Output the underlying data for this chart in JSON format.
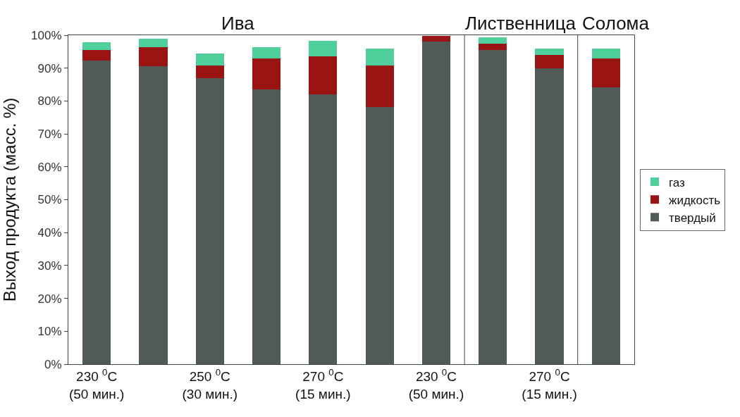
{
  "chart_data": {
    "type": "bar",
    "stacked": true,
    "ylabel": "Выход продукта (масс. %)",
    "categories": [
      "230 $^{0}$C\n(50 мин.)",
      null,
      "250 $^{0}$C\n(30 мин.)",
      null,
      "270 $^{0}$C\n(15 мин.)",
      null,
      "230 $^{0}$C\n(50 мин.)",
      null,
      "270 $^{0}$C\n(15 мин.)",
      null
    ],
    "series": [
      {
        "name": "твердый",
        "color": "#505a57",
        "values": [
          92.3,
          90.5,
          86.9,
          83.6,
          82.1,
          78.2,
          98.0,
          95.5,
          89.9,
          84.1
        ]
      },
      {
        "name": "жидкость",
        "color": "#9b1414",
        "values": [
          3.2,
          5.9,
          4.0,
          9.3,
          11.4,
          12.7,
          1.8,
          1.9,
          4.0,
          8.8
        ]
      },
      {
        "name": "газ",
        "color": "#4ecf9c",
        "values": [
          2.4,
          2.5,
          3.5,
          3.5,
          4.8,
          5.0,
          0,
          2.0,
          2.0,
          3.0
        ]
      }
    ],
    "ylim": [
      0,
      100
    ],
    "yticks": [
      {
        "value": 0,
        "label": "0%"
      },
      {
        "value": 10,
        "label": "10%"
      },
      {
        "value": 20,
        "label": "20%"
      },
      {
        "value": 30,
        "label": "30%"
      },
      {
        "value": 40,
        "label": "40%"
      },
      {
        "value": 50,
        "label": "50%"
      },
      {
        "value": 60,
        "label": "60%"
      },
      {
        "value": 70,
        "label": "70%"
      },
      {
        "value": 80,
        "label": "80%"
      },
      {
        "value": 90,
        "label": "90%"
      },
      {
        "value": 100,
        "label": "100%"
      }
    ],
    "annotations": [
      "Ива",
      "Лиственница",
      "Солома"
    ],
    "grid": false,
    "legend": "right"
  }
}
